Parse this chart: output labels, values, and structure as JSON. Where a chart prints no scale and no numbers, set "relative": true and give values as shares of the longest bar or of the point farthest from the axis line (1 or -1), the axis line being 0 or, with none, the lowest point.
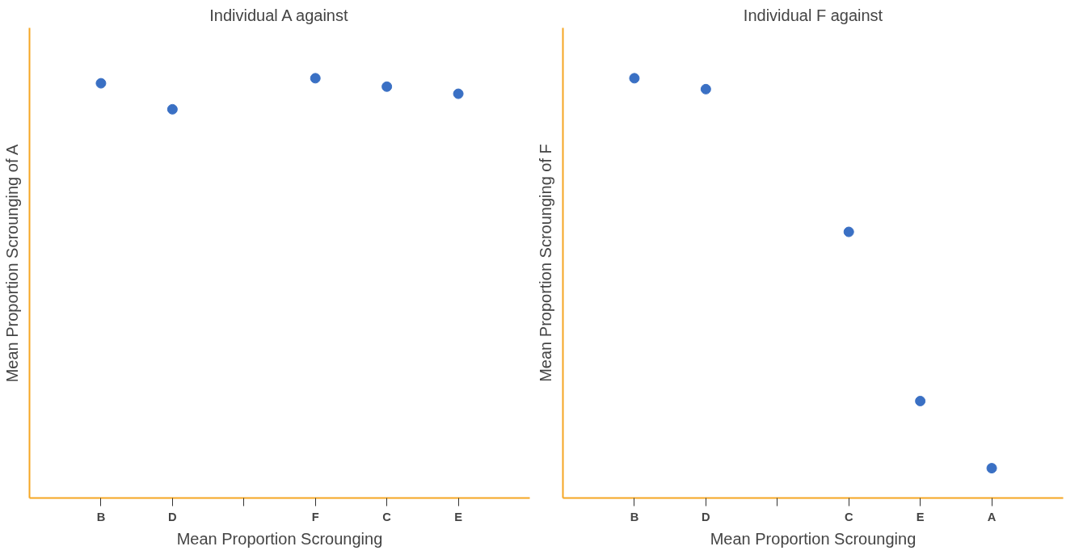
{
  "chart_data": [
    {
      "type": "scatter",
      "title": "Individual A against",
      "xlabel": "Mean Proportion Scrounging",
      "ylabel": "Mean Proportion Scrounging of A",
      "relative": true,
      "grid": false,
      "marker": "circle",
      "categories": [
        "B",
        "D",
        null,
        "F",
        "C",
        "E"
      ],
      "series": [
        {
          "color": "#3a70c4",
          "values": [
            0.988,
            0.926,
            null,
            1,
            0.98,
            0.963
          ]
        }
      ]
    },
    {
      "type": "scatter",
      "title": "Individual F against",
      "xlabel": "Mean Proportion Scrounging",
      "ylabel": "Mean Proportion Scrounging of F",
      "relative": true,
      "grid": false,
      "marker": "circle",
      "categories": [
        "B",
        "D",
        null,
        "C",
        "E",
        "A"
      ],
      "series": [
        {
          "color": "#3a70c4",
          "values": [
            1,
            0.974,
            null,
            0.634,
            0.231,
            0.071
          ]
        }
      ]
    }
  ]
}
